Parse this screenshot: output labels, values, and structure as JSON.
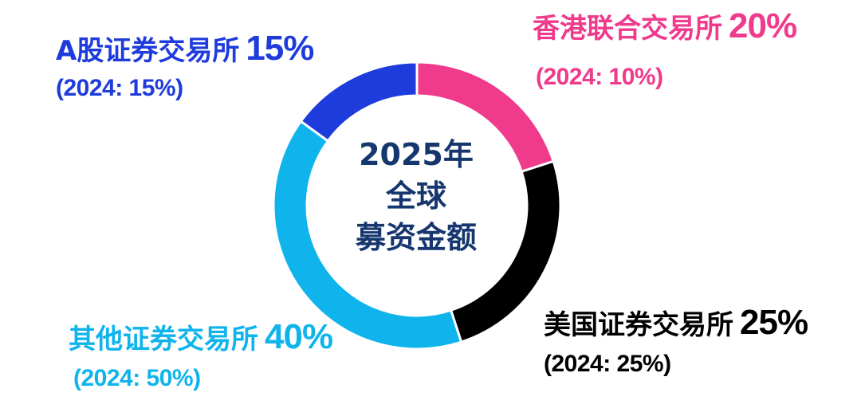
{
  "chart_data": {
    "type": "pie",
    "title": "",
    "center_label": [
      "2025年",
      "全球",
      "募资金额"
    ],
    "slices": [
      {
        "name": "香港联合交易所",
        "value": 20,
        "value_label": "20%",
        "prior": "(2024: 10%)",
        "color": "#f03a8c"
      },
      {
        "name": "美国证券交易所",
        "value": 25,
        "value_label": "25%",
        "prior": "(2024: 25%)",
        "color": "#000000"
      },
      {
        "name": "其他证券交易所",
        "value": 40,
        "value_label": "40%",
        "prior": "(2024: 50%)",
        "color": "#0fb4ed"
      },
      {
        "name": "A股证券交易所",
        "value": 15,
        "value_label": "15%",
        "prior": "(2024: 15%)",
        "color": "#1e3bdc"
      }
    ],
    "center_text_color": "#16366e"
  }
}
